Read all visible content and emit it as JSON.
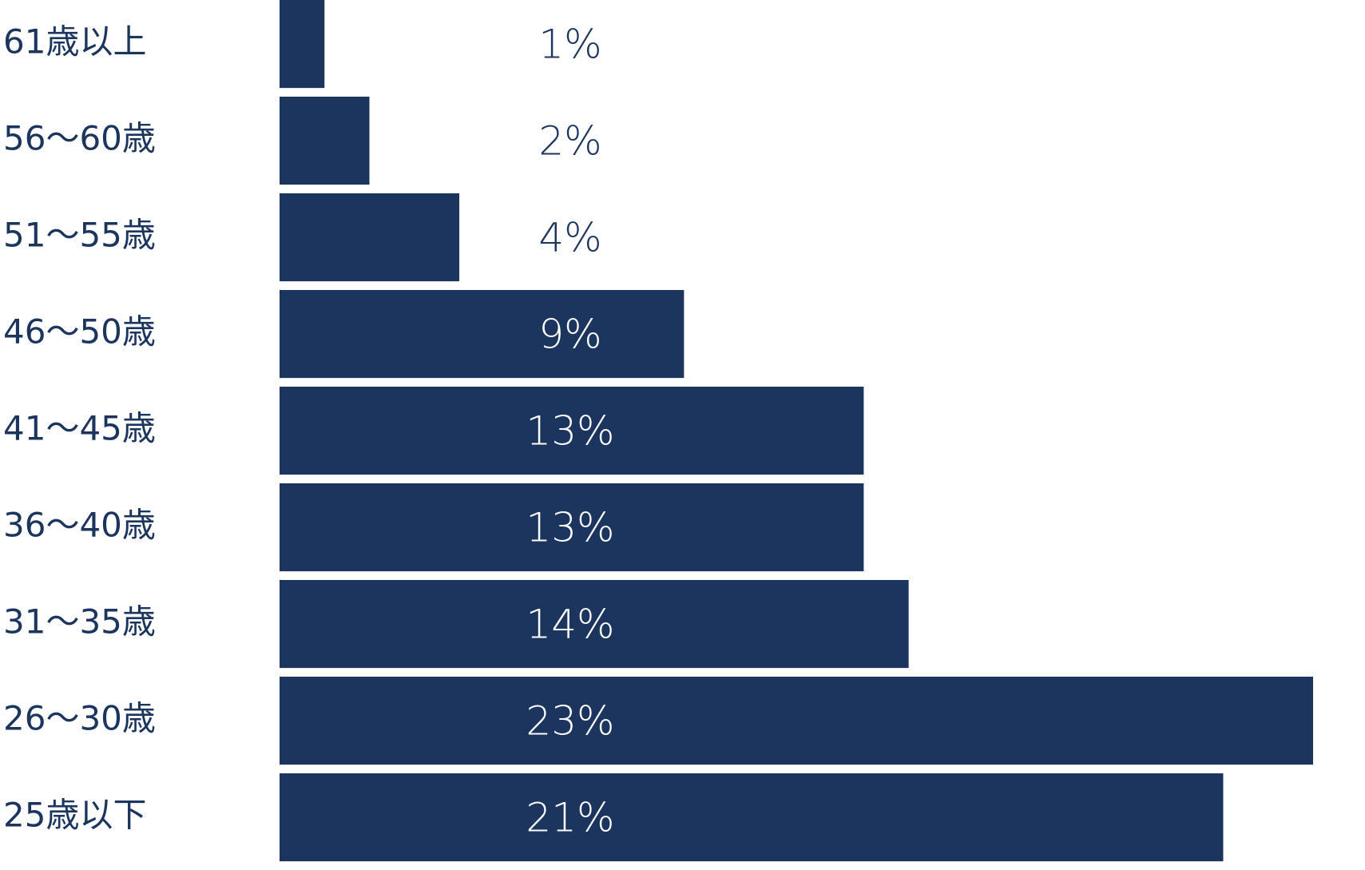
{
  "chart_data": {
    "type": "bar",
    "orientation": "horizontal",
    "color": "#1c355e",
    "categories": [
      "61歳以上",
      "56～60歳",
      "51～55歳",
      "46～50歳",
      "41～45歳",
      "36～40歳",
      "31～35歳",
      "26～30歳",
      "25歳以下"
    ],
    "values": [
      1,
      2,
      4,
      9,
      13,
      13,
      14,
      23,
      21
    ],
    "value_labels": [
      "1%",
      "2%",
      "4%",
      "9%",
      "13%",
      "13%",
      "14%",
      "23%",
      "21%"
    ]
  }
}
